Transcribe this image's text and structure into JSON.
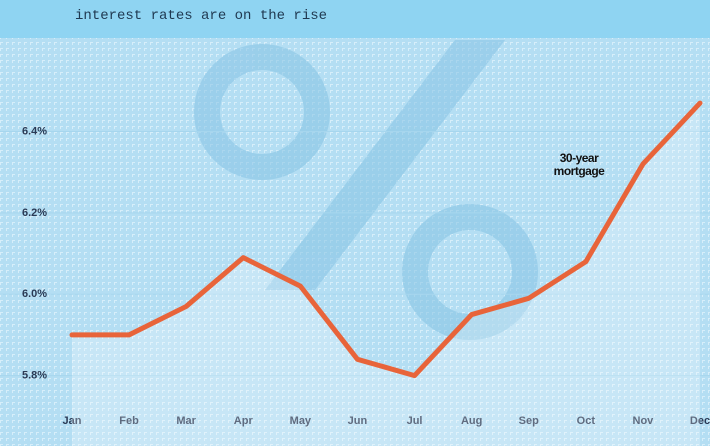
{
  "chart_data": {
    "type": "line",
    "title": "interest rates are on the rise",
    "annotation": "30-year mortgage",
    "categories": [
      "Jan",
      "Feb",
      "Mar",
      "Apr",
      "May",
      "Jun",
      "Jul",
      "Aug",
      "Sep",
      "Oct",
      "Nov",
      "Dec"
    ],
    "series": [
      {
        "name": "30-year mortgage",
        "color": "#e8643a",
        "values": [
          5.9,
          5.9,
          5.97,
          6.09,
          6.02,
          5.84,
          5.8,
          5.95,
          5.99,
          6.08,
          6.32,
          6.47
        ]
      }
    ],
    "ylim": [
      5.74,
      6.63
    ],
    "yticks": [
      {
        "value": 5.8,
        "label": "5.8%"
      },
      {
        "value": 6.0,
        "label": "6.0%"
      },
      {
        "value": 6.2,
        "label": "6.2%"
      },
      {
        "value": 6.4,
        "label": "6.4%"
      }
    ],
    "grid": true
  }
}
